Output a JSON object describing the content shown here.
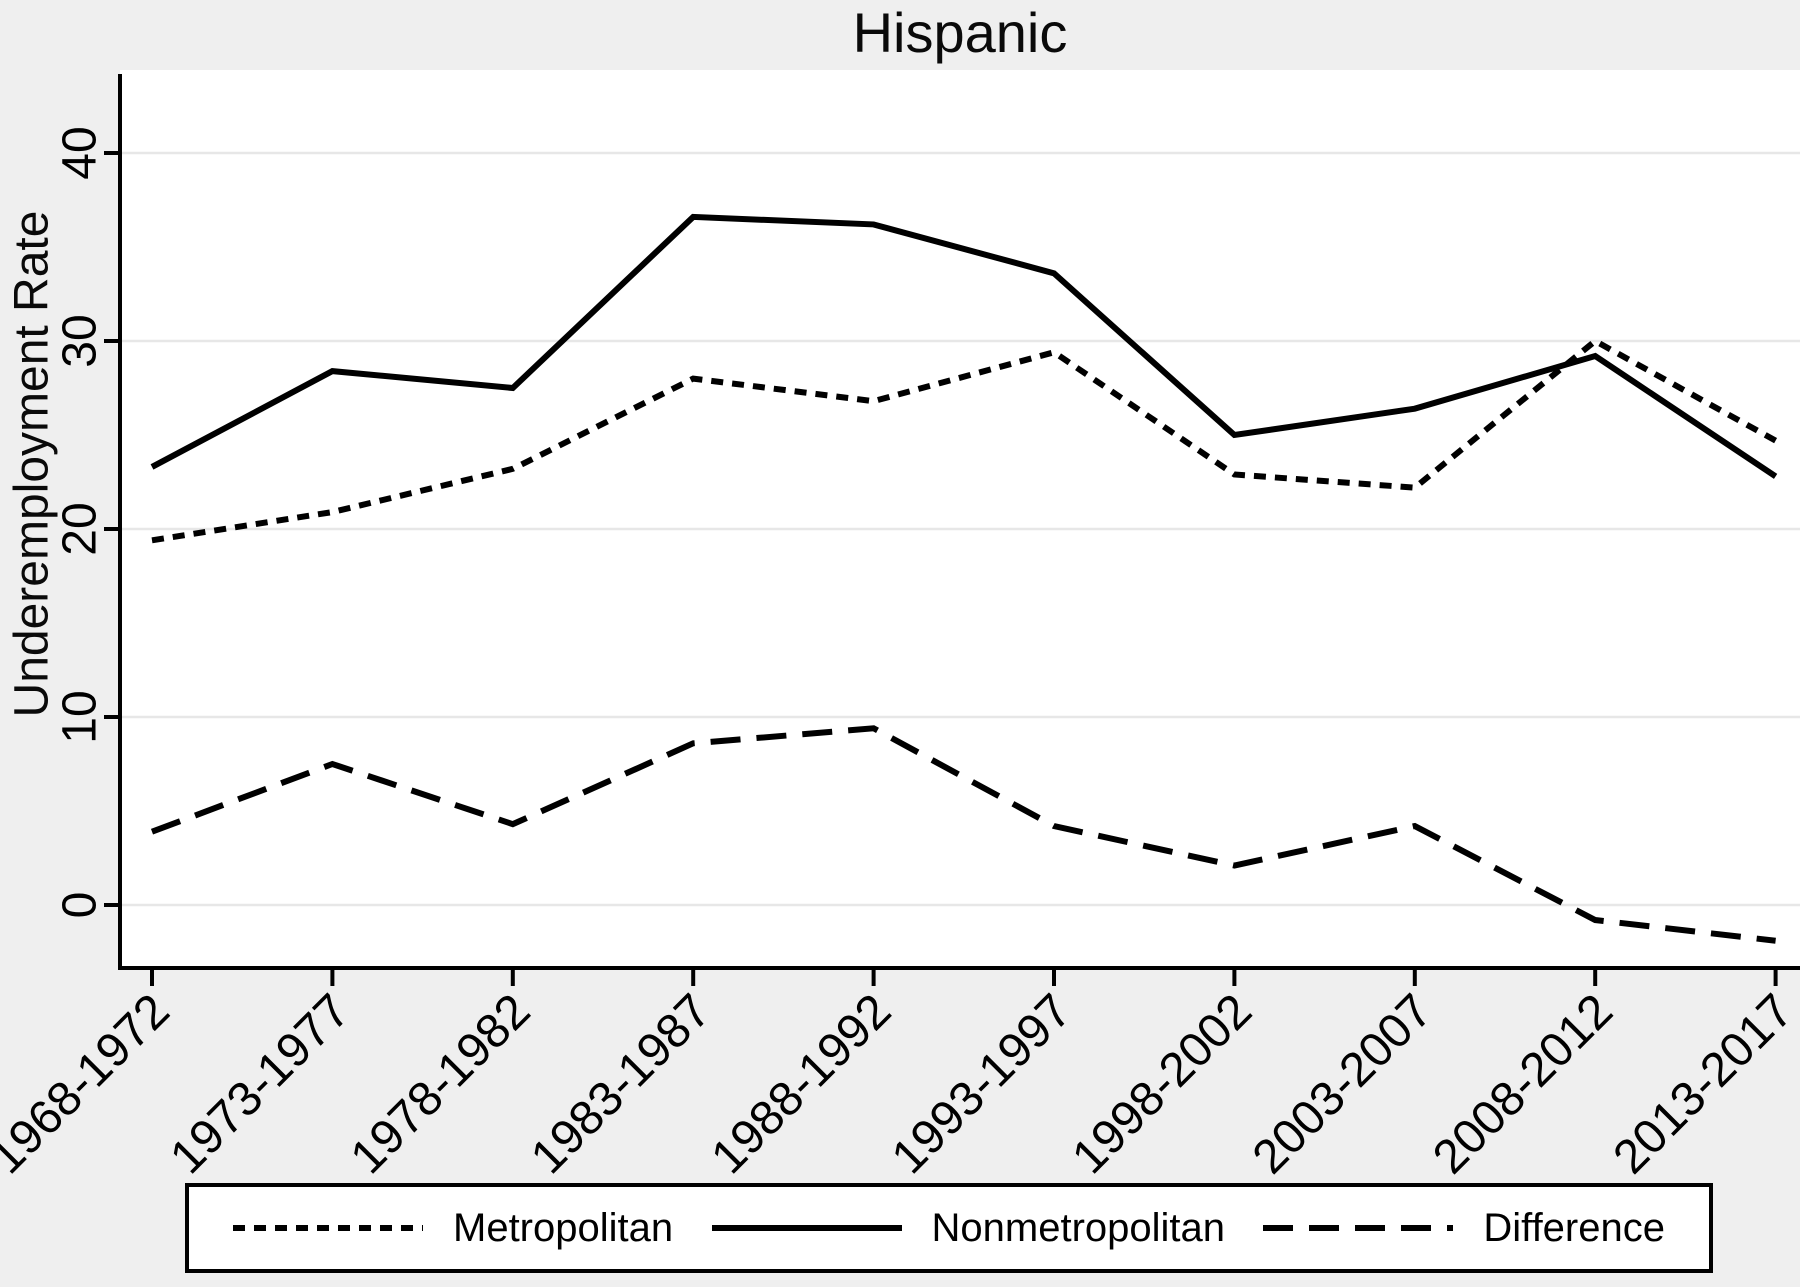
{
  "title": "Hispanic",
  "y_axis": {
    "label": "Underemployment Rate",
    "tick_labels": [
      "0",
      "10",
      "20",
      "30",
      "40"
    ]
  },
  "legend": {
    "entries": [
      "Metropolitan",
      "Nonmetropolitan",
      "Difference"
    ]
  },
  "colors": {
    "background": "#efefef",
    "plot_background": "#ffffff",
    "gridline": "#e7e7e7",
    "axis": "#000000",
    "series": "#000000",
    "legend_background": "#ffffff",
    "legend_border": "#000000"
  },
  "chart_data": {
    "type": "line",
    "title": "Hispanic",
    "xlabel": "",
    "ylabel": "Underemployment Rate",
    "categories": [
      "1968-1972",
      "1973-1977",
      "1978-1982",
      "1983-1987",
      "1988-1992",
      "1993-1997",
      "1998-2002",
      "2003-2007",
      "2008-2012",
      "2013-2017"
    ],
    "yticks": [
      0,
      10,
      20,
      30,
      40
    ],
    "ylim": [
      -3.4,
      44.2
    ],
    "grid": "horizontal",
    "legend_position": "bottom",
    "series": [
      {
        "name": "Metropolitan",
        "style": "dotted",
        "values": [
          19.4,
          20.9,
          23.2,
          28.0,
          26.8,
          29.4,
          22.9,
          22.2,
          30.0,
          24.7
        ]
      },
      {
        "name": "Nonmetropolitan",
        "style": "solid",
        "values": [
          23.3,
          28.4,
          27.5,
          36.6,
          36.2,
          33.6,
          25.0,
          26.4,
          29.2,
          22.8
        ]
      },
      {
        "name": "Difference",
        "style": "long-dash",
        "values": [
          3.9,
          7.5,
          4.3,
          8.6,
          9.4,
          4.2,
          2.1,
          4.2,
          -0.8,
          -1.9
        ]
      }
    ]
  }
}
